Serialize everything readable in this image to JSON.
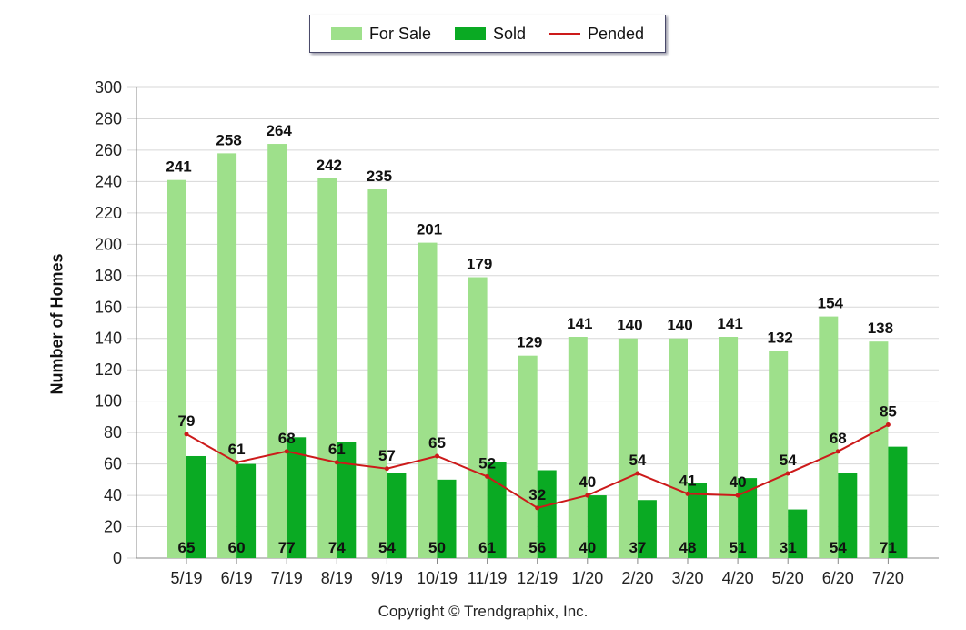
{
  "legend": {
    "for_sale": "For Sale",
    "sold": "Sold",
    "pended": "Pended"
  },
  "copyright": "Copyright © Trendgraphix, Inc.",
  "colors": {
    "for_sale": "#9ee08b",
    "sold": "#0aaa23",
    "pended": "#cc1a1a",
    "grid": "#d7d7d7",
    "axis": "#888888"
  },
  "chart_data": {
    "type": "bar",
    "ylabel": "Number of Homes",
    "xlabel": "",
    "ylim": [
      0,
      300
    ],
    "yticks": [
      0,
      20,
      40,
      60,
      80,
      100,
      120,
      140,
      160,
      180,
      200,
      220,
      240,
      260,
      280,
      300
    ],
    "grid": true,
    "legend_position": "top-center",
    "categories": [
      "5/19",
      "6/19",
      "7/19",
      "8/19",
      "9/19",
      "10/19",
      "11/19",
      "12/19",
      "1/20",
      "2/20",
      "3/20",
      "4/20",
      "5/20",
      "6/20",
      "7/20"
    ],
    "series": [
      {
        "name": "For Sale",
        "type": "bar",
        "values": [
          241,
          258,
          264,
          242,
          235,
          201,
          179,
          129,
          141,
          140,
          140,
          141,
          132,
          154,
          138
        ]
      },
      {
        "name": "Sold",
        "type": "bar",
        "values": [
          65,
          60,
          77,
          74,
          54,
          50,
          61,
          56,
          40,
          37,
          48,
          51,
          31,
          54,
          71
        ]
      },
      {
        "name": "Pended",
        "type": "line",
        "values": [
          79,
          61,
          68,
          61,
          57,
          65,
          52,
          32,
          40,
          54,
          41,
          40,
          54,
          68,
          85
        ]
      }
    ]
  }
}
